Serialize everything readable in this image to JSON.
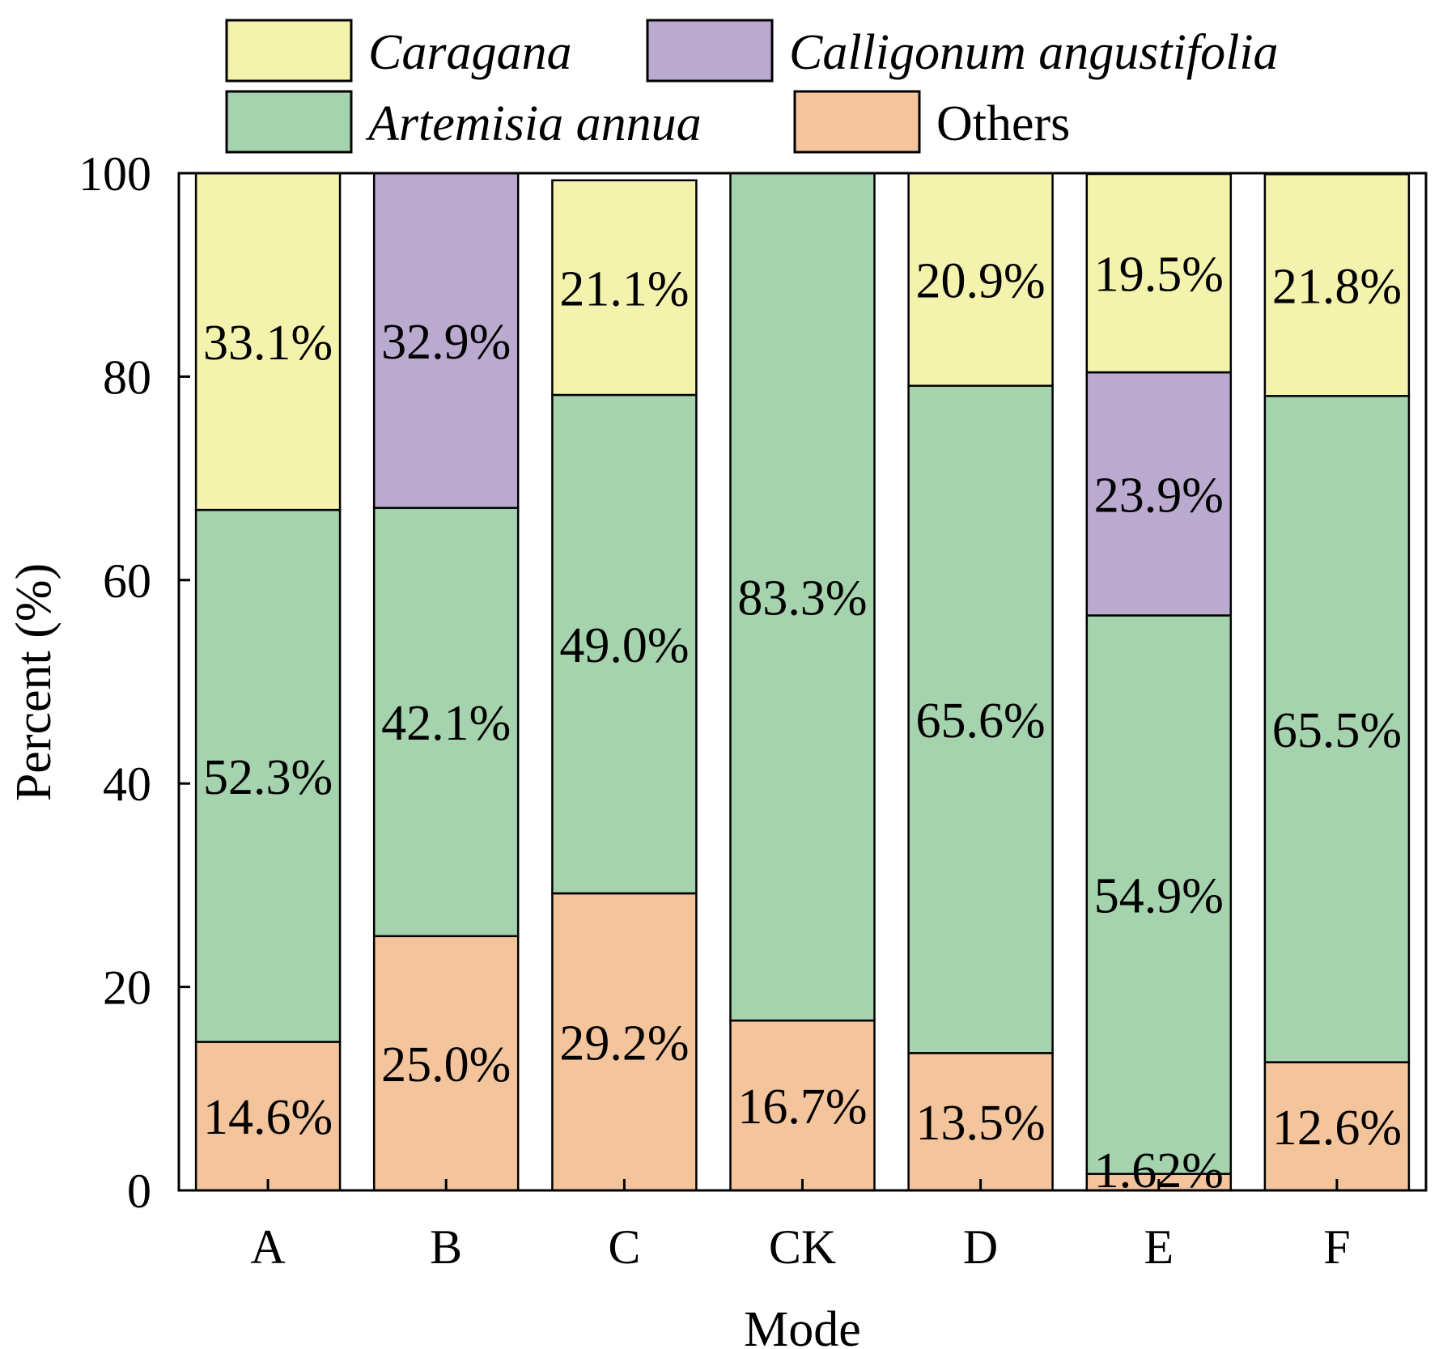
{
  "chart_data": {
    "type": "bar",
    "stacked": true,
    "xlabel": "Mode",
    "ylabel": "Percent (%)",
    "ylim": [
      0,
      100
    ],
    "yticks": [
      0,
      20,
      40,
      60,
      80,
      100
    ],
    "categories": [
      "A",
      "B",
      "C",
      "CK",
      "D",
      "E",
      "F"
    ],
    "series": [
      {
        "name": "Others",
        "color": "#f4c49c",
        "values": [
          14.6,
          25.0,
          29.2,
          16.7,
          13.5,
          1.62,
          12.6
        ],
        "labels": [
          "14.6%",
          "25.0%",
          "29.2%",
          "16.7%",
          "13.5%",
          "1.62%",
          "12.6%"
        ]
      },
      {
        "name": "Artemisia annua",
        "color": "#a5d3ad",
        "values": [
          52.3,
          42.1,
          49.0,
          83.3,
          65.6,
          54.9,
          65.5
        ],
        "labels": [
          "52.3%",
          "42.1%",
          "49.0%",
          "83.3%",
          "65.6%",
          "54.9%",
          "65.5%"
        ]
      },
      {
        "name": "Calligonum angustifolia",
        "color": "#bbaad0",
        "values": [
          0,
          32.9,
          0,
          0,
          0,
          23.9,
          0
        ],
        "labels": [
          "",
          "32.9%",
          "",
          "",
          "",
          "23.9%",
          ""
        ]
      },
      {
        "name": "Caragana",
        "color": "#f3f3ad",
        "values": [
          33.1,
          0,
          21.1,
          0,
          20.9,
          19.5,
          21.8
        ],
        "labels": [
          "33.1%",
          "",
          "21.1%",
          "",
          "20.9%",
          "19.5%",
          "21.8%"
        ]
      }
    ],
    "legend": {
      "placement": "top",
      "entries": [
        {
          "name": "Caragana",
          "italic": true
        },
        {
          "name": "Calligonum angustifolia",
          "italic": true
        },
        {
          "name": "Artemisia annua",
          "italic": true
        },
        {
          "name": "Others",
          "italic": false
        }
      ]
    }
  }
}
